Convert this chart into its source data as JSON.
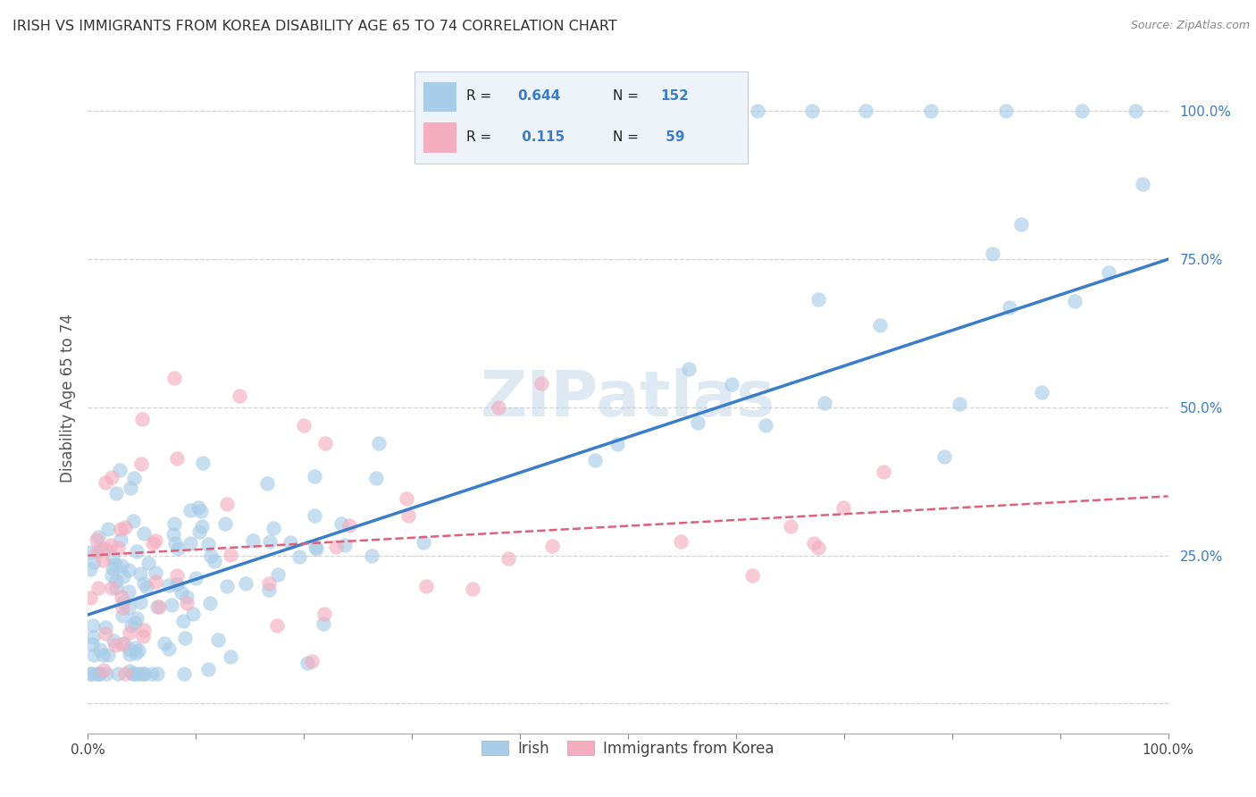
{
  "title": "IRISH VS IMMIGRANTS FROM KOREA DISABILITY AGE 65 TO 74 CORRELATION CHART",
  "source": "Source: ZipAtlas.com",
  "ylabel": "Disability Age 65 to 74",
  "ytick_labels": [
    "25.0%",
    "50.0%",
    "75.0%",
    "100.0%"
  ],
  "ytick_values": [
    25,
    50,
    75,
    100
  ],
  "xlim": [
    0,
    100
  ],
  "ylim": [
    -5,
    108
  ],
  "irish_R": "0.644",
  "irish_N": "152",
  "korea_R": "0.115",
  "korea_N": "59",
  "irish_color": "#a8cde8",
  "korea_color": "#f4aec0",
  "irish_line_color": "#3a7dc9",
  "korea_line_color": "#e0607a",
  "background_color": "#ffffff",
  "grid_color": "#c8c8c8",
  "title_color": "#333333",
  "axis_label_color": "#555555",
  "irish_line_start_y": 15,
  "irish_line_end_y": 75,
  "korea_line_start_y": 25,
  "korea_line_end_y": 35
}
